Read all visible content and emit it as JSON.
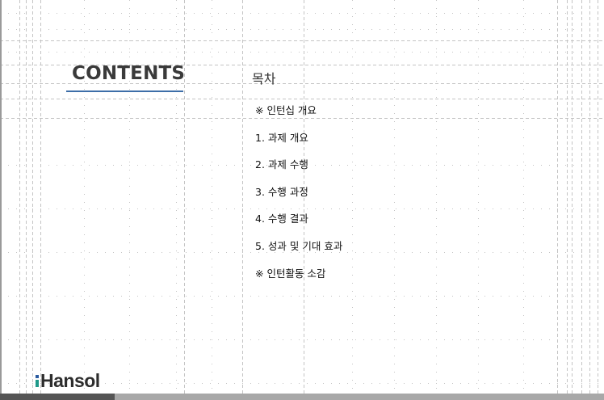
{
  "slide": {
    "title": "CONTENTS",
    "subtitle": "목차",
    "toc_items": [
      "※ 인턴십 개요",
      "1. 과제 개요",
      "2. 과제 수행",
      "3. 수행 과정",
      "4. 수행 결과",
      "5. 성과 및 기대 효과",
      "※ 인턴활동 소감"
    ]
  },
  "logo": {
    "text": "Hansol"
  },
  "colors": {
    "title_text": "#3a3a3a",
    "underline": "#3d6ea8",
    "footer_dark": "#555555",
    "footer_light": "#a8a8a8",
    "guide_lines": "#c4c4c4",
    "logo_blue": "#2a5aa0",
    "logo_teal": "#1f9a8a"
  }
}
